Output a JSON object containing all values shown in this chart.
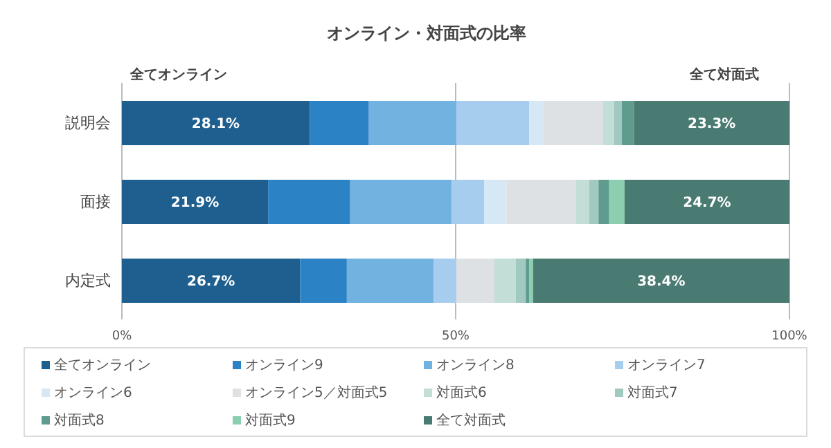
{
  "chart_data": {
    "type": "bar",
    "orientation": "horizontal",
    "stacked": true,
    "title": "オンライン・対面式の比率",
    "categories": [
      "説明会",
      "面接",
      "内定式"
    ],
    "xlim": [
      0,
      100
    ],
    "xticks": [
      {
        "value": 0,
        "label": "0%"
      },
      {
        "value": 50,
        "label": "50%"
      },
      {
        "value": 100,
        "label": "100%"
      }
    ],
    "grid": "x",
    "legend": "bottom",
    "annotations": [
      "全てオンライン",
      "全て対面式"
    ],
    "series": [
      {
        "name": "全てオンライン",
        "color": "#1f5f8f",
        "values": [
          28.1,
          21.9,
          26.7
        ],
        "value_labels": [
          "28.1%",
          "21.9%",
          "26.7%"
        ]
      },
      {
        "name": "オンライン9",
        "color": "#2b82c4",
        "values": [
          8.9,
          12.3,
          7.0
        ]
      },
      {
        "name": "オンライン8",
        "color": "#72b2e0",
        "values": [
          13.1,
          15.2,
          13.0
        ]
      },
      {
        "name": "オンライン7",
        "color": "#a7cdee",
        "values": [
          10.9,
          4.9,
          3.4
        ]
      },
      {
        "name": "オンライン6",
        "color": "#d6e8f6",
        "values": [
          2.1,
          3.3,
          0
        ]
      },
      {
        "name": "オンライン5／対面式5",
        "color": "#dde1e4",
        "values": [
          9.0,
          10.4,
          5.7
        ]
      },
      {
        "name": "対面式6",
        "color": "#c3ddd7",
        "values": [
          1.6,
          2.0,
          3.2
        ]
      },
      {
        "name": "対面式7",
        "color": "#a2c9bf",
        "values": [
          1.2,
          1.4,
          1.5
        ]
      },
      {
        "name": "対面式8",
        "color": "#5f9b8f",
        "values": [
          1.8,
          1.6,
          0.5
        ]
      },
      {
        "name": "対面式9",
        "color": "#8bcfb0",
        "values": [
          0,
          2.3,
          0.6
        ]
      },
      {
        "name": "全て対面式",
        "color": "#4a7b72",
        "values": [
          23.3,
          24.7,
          38.4
        ],
        "value_labels": [
          "23.3%",
          "24.7%",
          "38.4%"
        ]
      }
    ]
  }
}
